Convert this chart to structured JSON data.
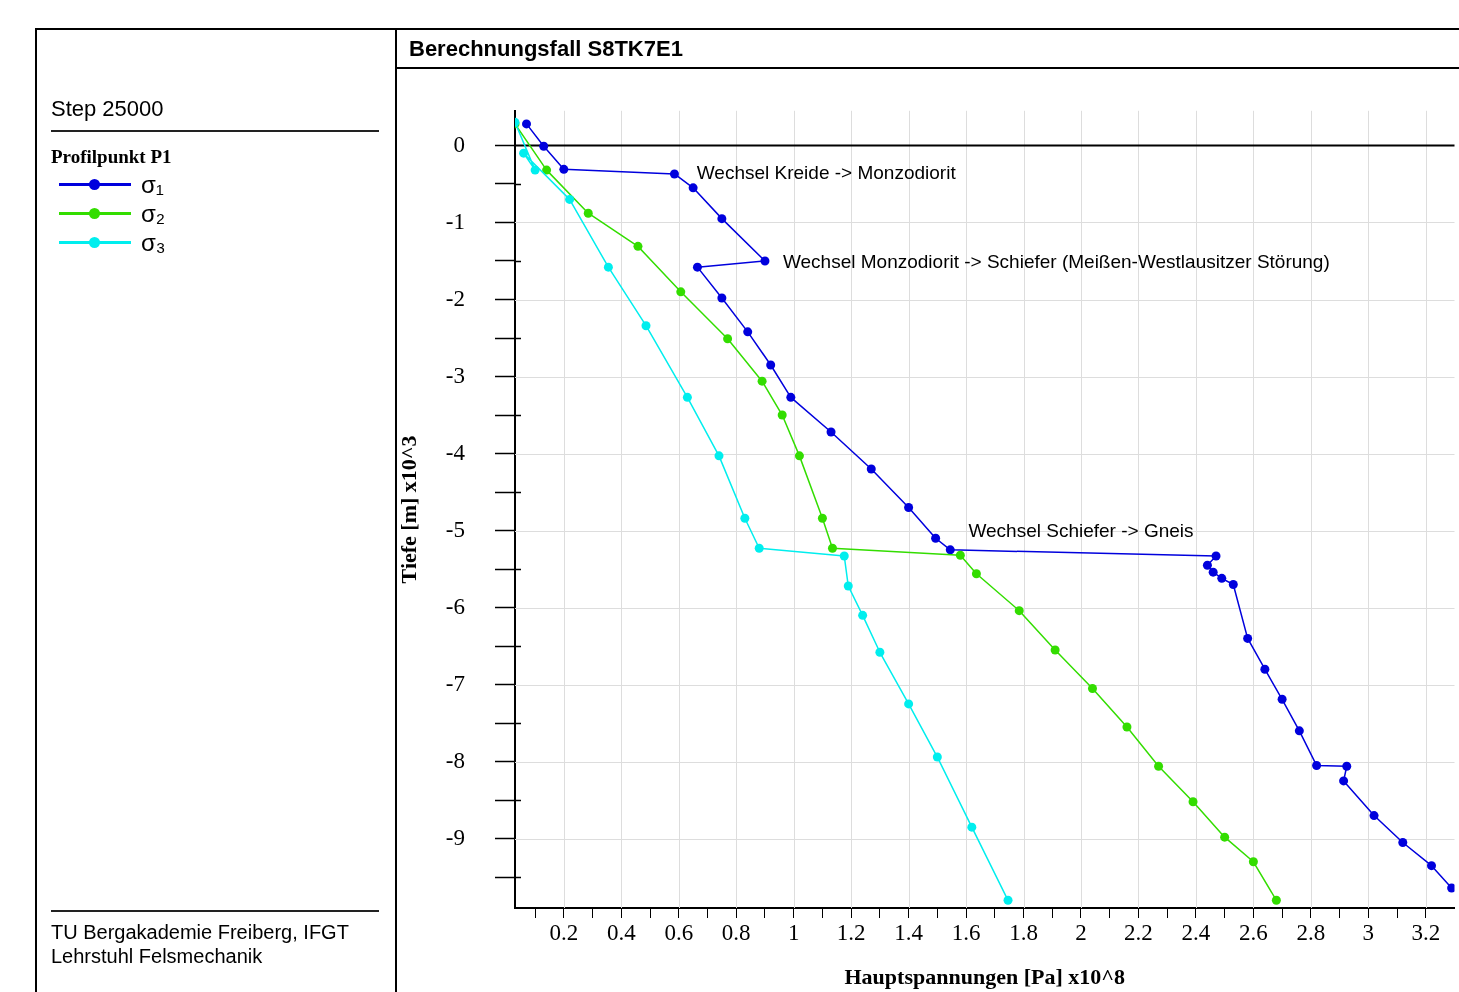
{
  "chart_data": {
    "type": "line",
    "title": "Berechnungsfall S8TK7E1",
    "xlabel": "Hauptspannungen [Pa] x10^8",
    "ylabel": "Tiefe [m] x10^3",
    "legend_title": "Profilpunkt P1",
    "legend": "left",
    "grid": true,
    "marker": "circle",
    "line_style": "solid",
    "xlim": [
      0.03,
      3.3
    ],
    "xticks": [
      {
        "value": 0.1,
        "label": null
      },
      0.2,
      {
        "value": 0.3,
        "label": null
      },
      0.4,
      {
        "value": 0.5,
        "label": null
      },
      0.6,
      {
        "value": 0.7,
        "label": null
      },
      0.8,
      {
        "value": 0.9,
        "label": null
      },
      1,
      {
        "value": 1.1,
        "label": null
      },
      1.2,
      {
        "value": 1.3,
        "label": null
      },
      1.4,
      {
        "value": 1.5,
        "label": null
      },
      1.6,
      {
        "value": 1.7,
        "label": null
      },
      1.8,
      {
        "value": 1.9,
        "label": null
      },
      2,
      {
        "value": 2.1,
        "label": null
      },
      2.2,
      {
        "value": 2.3,
        "label": null
      },
      2.4,
      {
        "value": 2.5,
        "label": null
      },
      2.6,
      {
        "value": 2.7,
        "label": null
      },
      2.8,
      {
        "value": 2.9,
        "label": null
      },
      3,
      {
        "value": 3.1,
        "label": null
      },
      3.2
    ],
    "ylim": [
      -9.9,
      0.45
    ],
    "yticks": [
      0,
      {
        "value": -0.5,
        "label": null
      },
      -1,
      {
        "value": -1.5,
        "label": null
      },
      -2,
      {
        "value": -2.5,
        "label": null
      },
      -3,
      {
        "value": -3.5,
        "label": null
      },
      -4,
      {
        "value": -4.5,
        "label": null
      },
      -5,
      {
        "value": -5.5,
        "label": null
      },
      -6,
      {
        "value": -6.5,
        "label": null
      },
      -7,
      {
        "value": -7.5,
        "label": null
      },
      -8,
      {
        "value": -8.5,
        "label": null
      },
      -9,
      {
        "value": -9.5,
        "label": null
      }
    ],
    "series": [
      {
        "name": "σ₁",
        "color": "#0000dd",
        "x": [
          0.07,
          0.13,
          0.2,
          0.585,
          0.65,
          0.75,
          0.9,
          0.665,
          0.75,
          0.84,
          0.92,
          0.99,
          1.13,
          1.27,
          1.4,
          1.494,
          1.545,
          2.47,
          2.44,
          2.46,
          2.49,
          2.53,
          2.58,
          2.64,
          2.7,
          2.76,
          2.82,
          2.925,
          2.914,
          3.02,
          3.12,
          3.22,
          3.29
        ],
        "values": [
          0.28,
          -0.01,
          -0.31,
          -0.37,
          -0.55,
          -0.95,
          -1.5,
          -1.58,
          -1.98,
          -2.42,
          -2.85,
          -3.27,
          -3.72,
          -4.2,
          -4.7,
          -5.1,
          -5.25,
          -5.33,
          -5.45,
          -5.54,
          -5.62,
          -5.7,
          -6.4,
          -6.8,
          -7.19,
          -7.6,
          -8.05,
          -8.06,
          -8.25,
          -8.7,
          -9.05,
          -9.35,
          -9.64
        ]
      },
      {
        "name": "σ₂",
        "color": "#33dd00",
        "x": [
          0.03,
          0.14,
          0.285,
          0.458,
          0.607,
          0.77,
          0.89,
          0.96,
          1.02,
          1.1,
          1.135,
          1.58,
          1.636,
          1.785,
          1.91,
          2.04,
          2.16,
          2.27,
          2.39,
          2.5,
          2.6,
          2.68
        ],
        "values": [
          0.28,
          -0.32,
          -0.88,
          -1.31,
          -1.9,
          -2.51,
          -3.06,
          -3.5,
          -4.03,
          -4.84,
          -5.23,
          -5.32,
          -5.56,
          -6.04,
          -6.55,
          -7.05,
          -7.55,
          -8.06,
          -8.52,
          -8.98,
          -9.3,
          -9.8
        ]
      },
      {
        "name": "σ₃",
        "color": "#00eeee",
        "x": [
          0.03,
          0.1,
          0.06,
          0.22,
          0.355,
          0.486,
          0.63,
          0.74,
          0.83,
          0.88,
          1.176,
          1.19,
          1.24,
          1.3,
          1.4,
          1.5,
          1.62,
          1.746
        ],
        "values": [
          0.3,
          -0.32,
          -0.1,
          -0.7,
          -1.58,
          -2.34,
          -3.27,
          -4.03,
          -4.84,
          -5.23,
          -5.33,
          -5.72,
          -6.1,
          -6.58,
          -7.25,
          -7.94,
          -8.85,
          -9.8
        ]
      }
    ],
    "annotations": [
      "Step 25000",
      "TU Bergakademie Freiberg, IFGT",
      "Lehrstuhl Felsmechanik",
      {
        "text": "Wechsel Kreide -> Monzodiorit",
        "x": 0.6,
        "y": -0.37
      },
      {
        "text": "Wechsel Monzodiorit -> Schiefer (Meißen-Westlausitzer Störung)",
        "x": 0.9,
        "y": -1.52
      },
      {
        "text": "Wechsel Schiefer -> Gneis",
        "x": 2.0,
        "y": -5.3
      }
    ]
  }
}
